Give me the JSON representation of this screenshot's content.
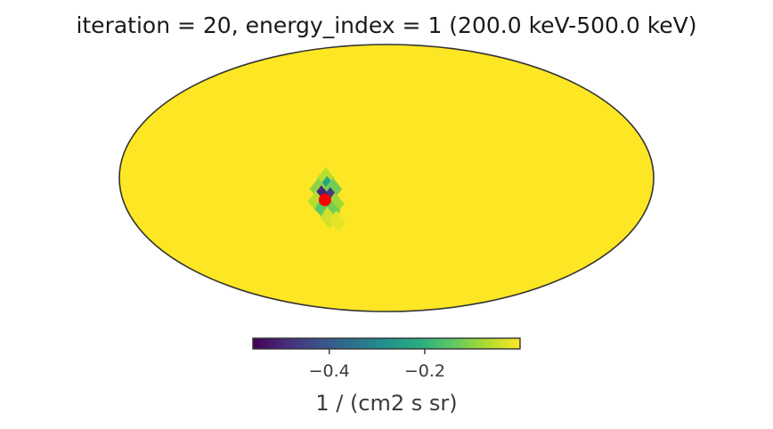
{
  "chart_data": {
    "type": "heatmap",
    "projection": "mollweide",
    "title": "iteration = 20, energy_index = 1 (200.0 keV-500.0 keV)",
    "colormap": "viridis",
    "colorbar": {
      "label": "1 / (cm2 s sr)",
      "range": [
        -0.56,
        0.0
      ],
      "ticks": [
        -0.4,
        -0.2
      ],
      "tick_labels": [
        "−0.4",
        "−0.2"
      ],
      "placement": "bottom"
    },
    "background_value": 0.0,
    "source_marker": {
      "lon": -42,
      "lat": -12,
      "color": "#ff0000"
    },
    "pixels": [
      {
        "lon": -41,
        "lat": 0,
        "value": -0.06
      },
      {
        "lon": -40,
        "lat": -5,
        "value": -0.23
      },
      {
        "lon": -46,
        "lat": -6,
        "value": -0.1
      },
      {
        "lon": -36,
        "lat": -6,
        "value": -0.12
      },
      {
        "lon": -44,
        "lat": -10,
        "value": -0.5
      },
      {
        "lon": -38,
        "lat": -11,
        "value": -0.46
      },
      {
        "lon": -41,
        "lat": -14,
        "value": -0.56
      },
      {
        "lon": -35,
        "lat": -14,
        "value": -0.08
      },
      {
        "lon": -48,
        "lat": -13,
        "value": -0.06
      },
      {
        "lon": -44,
        "lat": -17,
        "value": -0.14
      },
      {
        "lon": -38,
        "lat": -18,
        "value": -0.12
      },
      {
        "lon": -41,
        "lat": -22,
        "value": -0.04
      },
      {
        "lon": -35,
        "lat": -24,
        "value": -0.02
      }
    ]
  }
}
